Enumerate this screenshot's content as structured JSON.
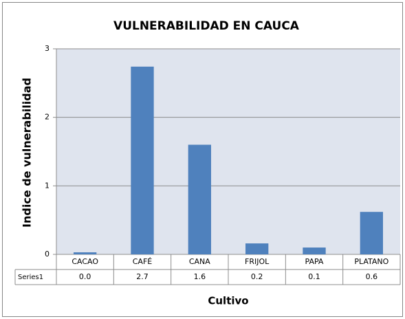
{
  "chart_data": {
    "type": "bar",
    "title": "VULNERABILIDAD EN CAUCA",
    "x_label": "Cultivo",
    "y_label": "Indice de vulnerabilidad",
    "categories": [
      "CACAO",
      "CAFÉ",
      "CANA",
      "FRIJOL",
      "PAPA",
      "PLATANO"
    ],
    "series": [
      {
        "name": "Series1",
        "color": "#4f81bd",
        "values": [
          0.03,
          2.74,
          1.6,
          0.16,
          0.1,
          0.62
        ],
        "value_labels": [
          "0.0",
          "2.7",
          "1.6",
          "0.2",
          "0.1",
          "0.6"
        ]
      }
    ],
    "ylim": [
      0,
      3
    ],
    "yticks": [
      0,
      1,
      2,
      3
    ],
    "grid": true
  }
}
